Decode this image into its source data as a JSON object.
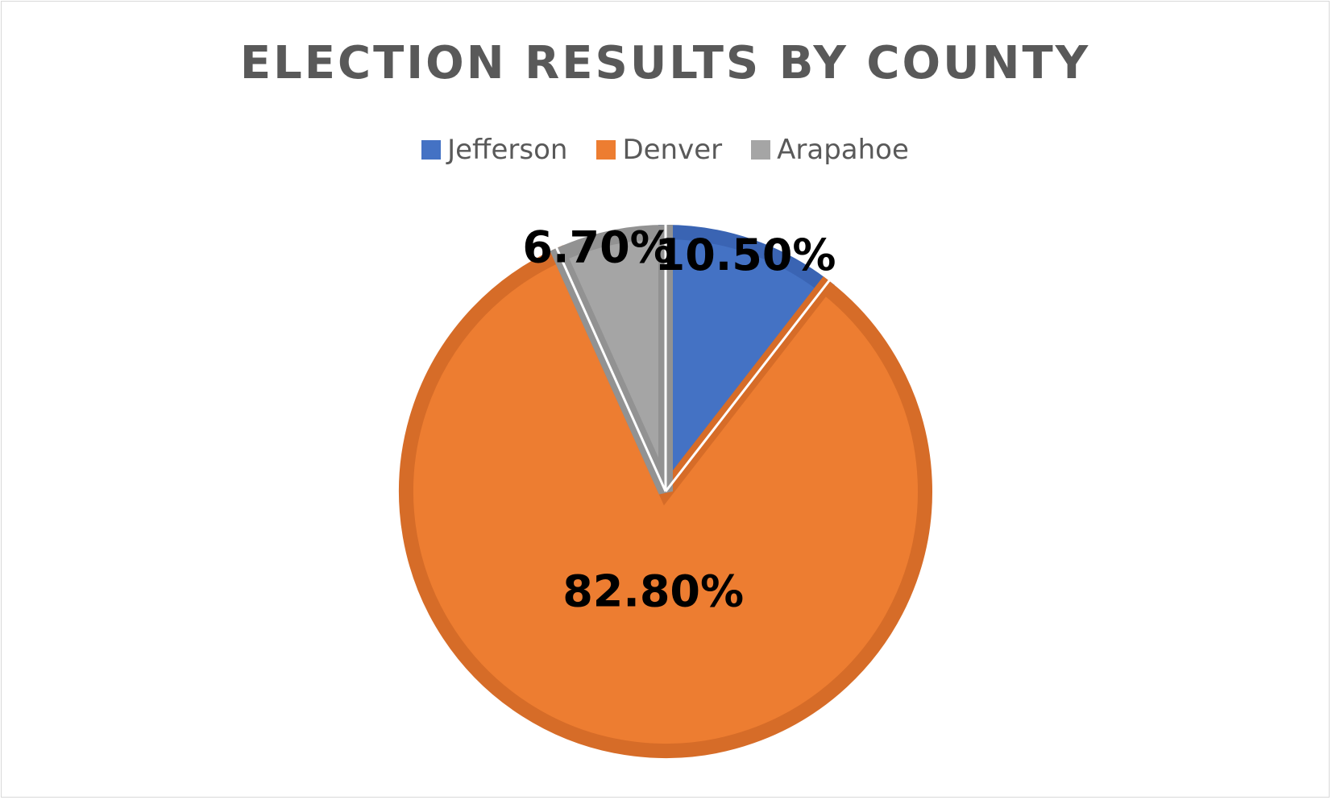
{
  "chart_data": {
    "type": "pie",
    "title": "ELECTION RESULTS BY COUNTY",
    "legend_position": "top",
    "slices": [
      {
        "name": "Jefferson",
        "value": 10.5,
        "label": "10.50%",
        "color": "#4472c4",
        "edge": "#3a64b3"
      },
      {
        "name": "Denver",
        "value": 82.8,
        "label": "82.80%",
        "color": "#ed7d31",
        "edge": "#d66c28"
      },
      {
        "name": "Arapahoe",
        "value": 6.7,
        "label": "6.70%",
        "color": "#a5a5a5",
        "edge": "#929292"
      }
    ]
  }
}
